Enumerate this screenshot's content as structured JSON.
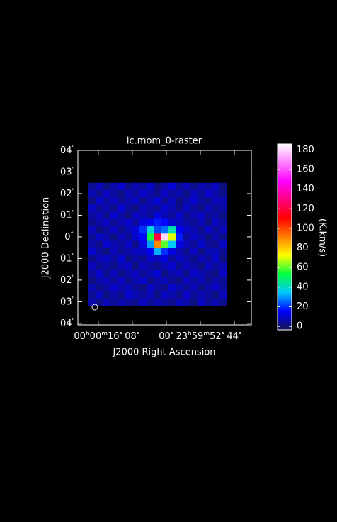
{
  "chart_data": {
    "type": "image",
    "title": "lc.mom_0-raster",
    "x_label": "J2000 Right Ascension",
    "y_label": "J2000 Declination",
    "colorbar_label": "(K.km/s)",
    "xlim": [
      20.8,
      -20
    ],
    "ylim": [
      -4.07,
      4.0
    ],
    "xticks": [
      {
        "value": 16,
        "label": "00h00m16s"
      },
      {
        "value": 8,
        "label": "08s"
      },
      {
        "value": 0,
        "label": "00s"
      },
      {
        "value": -8,
        "label": "23h59m52s"
      },
      {
        "value": -16,
        "label": "44s"
      }
    ],
    "yticks": [
      {
        "value": 4,
        "label": "04'"
      },
      {
        "value": 3,
        "label": "03'"
      },
      {
        "value": 2,
        "label": "02'"
      },
      {
        "value": 1,
        "label": "01'"
      },
      {
        "value": 0,
        "label": "0°"
      },
      {
        "value": -1,
        "label": "01'"
      },
      {
        "value": -2,
        "label": "02'"
      },
      {
        "value": -3,
        "label": "03'"
      },
      {
        "value": -4,
        "label": "04'"
      }
    ],
    "extent_x": [
      18.3,
      -14.2
    ],
    "extent_y": [
      2.5,
      -3.2
    ],
    "clim": [
      -3.5,
      186
    ],
    "cticks": [
      0,
      20,
      40,
      60,
      80,
      100,
      120,
      140,
      160,
      180
    ],
    "colormap": [
      "#141450",
      "#0000ff",
      "#00c8ff",
      "#00ff40",
      "#ffff00",
      "#ff8000",
      "#ff0000",
      "#ff0080",
      "#ff00ff",
      "#ff80ff",
      "#ffffff"
    ],
    "values": [
      [
        4,
        8,
        2,
        6,
        10,
        3,
        7,
        5,
        9,
        2,
        6,
        11,
        4,
        8,
        3,
        7,
        5,
        9,
        2
      ],
      [
        7,
        3,
        9,
        5,
        2,
        8,
        4,
        10,
        6,
        3,
        9,
        5,
        7,
        2,
        8,
        4,
        10,
        6,
        3
      ],
      [
        2,
        10,
        5,
        8,
        4,
        6,
        9,
        3,
        7,
        11,
        4,
        8,
        2,
        6,
        10,
        5,
        3,
        8,
        7
      ],
      [
        9,
        4,
        7,
        3,
        11,
        5,
        2,
        8,
        6,
        4,
        10,
        7,
        3,
        9,
        5,
        2,
        8,
        4,
        6
      ],
      [
        5,
        8,
        3,
        10,
        6,
        2,
        9,
        7,
        4,
        12,
        8,
        5,
        10,
        3,
        7,
        9,
        4,
        6,
        2
      ],
      [
        3,
        6,
        9,
        4,
        7,
        10,
        5,
        12,
        14,
        18,
        16,
        10,
        8,
        6,
        4,
        8,
        2,
        9,
        5
      ],
      [
        8,
        2,
        5,
        9,
        3,
        7,
        11,
        20,
        38,
        22,
        26,
        42,
        14,
        9,
        7,
        3,
        10,
        4,
        8
      ],
      [
        4,
        9,
        6,
        2,
        8,
        4,
        10,
        16,
        55,
        120,
        180,
        70,
        18,
        5,
        9,
        6,
        2,
        7,
        3
      ],
      [
        6,
        3,
        10,
        7,
        5,
        9,
        3,
        12,
        30,
        90,
        60,
        35,
        12,
        8,
        4,
        10,
        5,
        3,
        9
      ],
      [
        10,
        5,
        2,
        8,
        4,
        6,
        8,
        9,
        14,
        32,
        20,
        12,
        7,
        3,
        9,
        2,
        7,
        8,
        4
      ],
      [
        3,
        7,
        9,
        5,
        11,
        2,
        6,
        4,
        10,
        8,
        12,
        5,
        9,
        6,
        3,
        8,
        4,
        10,
        2
      ],
      [
        8,
        4,
        6,
        3,
        7,
        9,
        2,
        8,
        5,
        3,
        7,
        10,
        4,
        8,
        6,
        2,
        9,
        5,
        7
      ],
      [
        5,
        10,
        3,
        8,
        2,
        6,
        9,
        4,
        7,
        11,
        2,
        6,
        8,
        3,
        10,
        7,
        4,
        2,
        9
      ],
      [
        2,
        6,
        8,
        4,
        9,
        3,
        7,
        10,
        3,
        6,
        8,
        4,
        2,
        9,
        5,
        8,
        3,
        6,
        4
      ],
      [
        7,
        3,
        5,
        10,
        6,
        8,
        4,
        2,
        9,
        5,
        3,
        10,
        7,
        4,
        8,
        2,
        6,
        9,
        5
      ],
      [
        4,
        9,
        2,
        6,
        3,
        10,
        7,
        5,
        8,
        2,
        9,
        6,
        3,
        10,
        4,
        7,
        5,
        2,
        8
      ],
      [
        6,
        2,
        8,
        4,
        7,
        5,
        3,
        9,
        4,
        7,
        5,
        3,
        8,
        6,
        2,
        9,
        4,
        7,
        3
      ]
    ]
  }
}
